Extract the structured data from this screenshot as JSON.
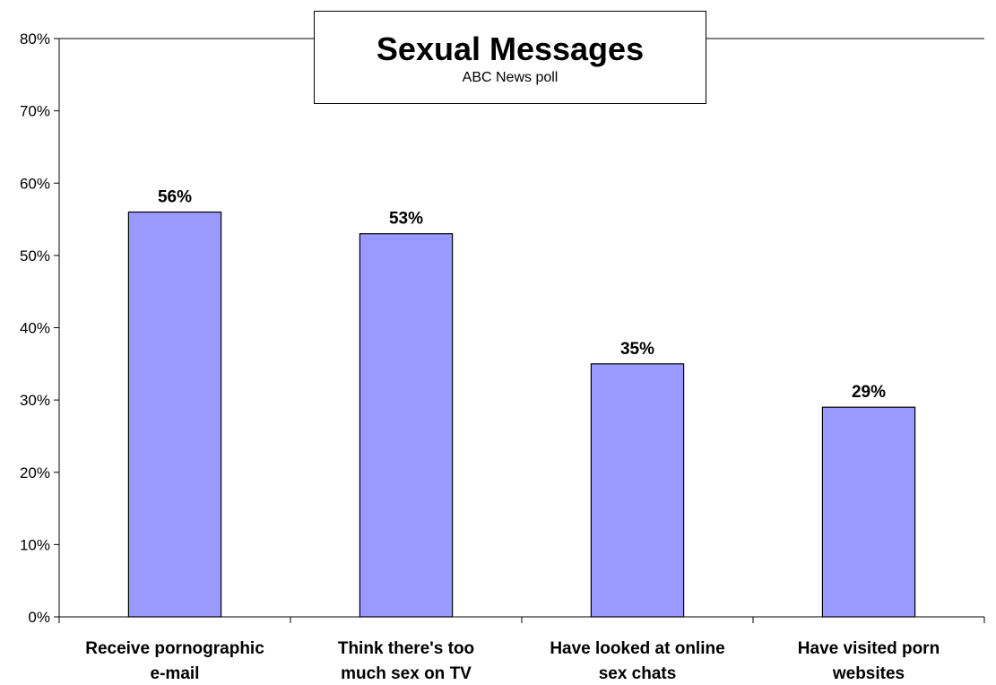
{
  "chart_data": {
    "type": "bar",
    "title": "Sexual Messages",
    "subtitle": "ABC News poll",
    "categories": [
      [
        "Receive pornographic",
        "e-mail"
      ],
      [
        "Think there's too",
        "much sex on TV"
      ],
      [
        "Have looked at online",
        "sex chats"
      ],
      [
        "Have visited porn",
        "websites"
      ]
    ],
    "values": [
      56,
      53,
      35,
      29
    ],
    "data_labels": [
      "56%",
      "53%",
      "35%",
      "29%"
    ],
    "ylim": [
      0,
      80
    ],
    "yticks": [
      "0%",
      "10%",
      "20%",
      "30%",
      "40%",
      "50%",
      "60%",
      "70%",
      "80%"
    ],
    "xlabel": "",
    "ylabel": "",
    "grid": false,
    "legend": false,
    "bar_color": "#9999FF",
    "bar_border_color": "#000000"
  }
}
